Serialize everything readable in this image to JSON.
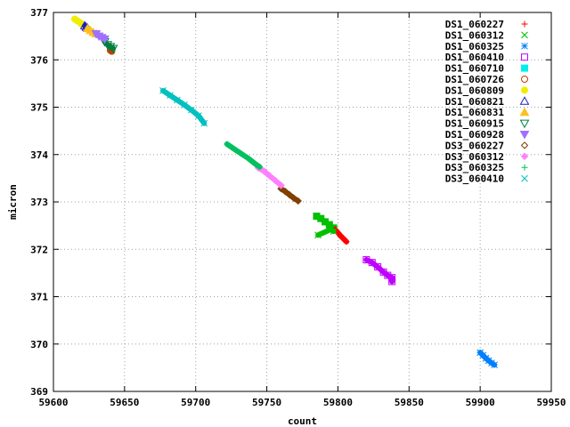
{
  "chart_data": {
    "type": "scatter",
    "title": "",
    "xlabel": "count",
    "ylabel": "micron",
    "xlim": [
      59600,
      59950
    ],
    "ylim": [
      369,
      377
    ],
    "xticks": [
      59600,
      59650,
      59700,
      59750,
      59800,
      59850,
      59900,
      59950
    ],
    "yticks": [
      369,
      370,
      371,
      372,
      373,
      374,
      375,
      376,
      377
    ],
    "grid": true,
    "legend_position": "top-right",
    "series": [
      {
        "name": "DS1_060227",
        "color": "#ff0000",
        "marker": "plus",
        "points": [
          [
            59798,
            372.42
          ],
          [
            59800,
            372.35
          ],
          [
            59802,
            372.28
          ],
          [
            59804,
            372.22
          ],
          [
            59806,
            372.16
          ]
        ]
      },
      {
        "name": "DS1_060312",
        "color": "#00c000",
        "marker": "cross",
        "points": [
          [
            59786,
            372.3
          ],
          [
            59795,
            372.42
          ],
          [
            59797,
            372.38
          ]
        ]
      },
      {
        "name": "DS1_060325",
        "color": "#0080ff",
        "marker": "star",
        "points": [
          [
            59900,
            369.82
          ],
          [
            59902,
            369.76
          ],
          [
            59904,
            369.7
          ],
          [
            59906,
            369.65
          ],
          [
            59908,
            369.6
          ],
          [
            59910,
            369.56
          ]
        ]
      },
      {
        "name": "DS1_060410",
        "color": "#c000ff",
        "marker": "square",
        "points": [
          [
            59820,
            371.78
          ],
          [
            59824,
            371.72
          ],
          [
            59828,
            371.63
          ],
          [
            59832,
            371.52
          ],
          [
            59835,
            371.45
          ],
          [
            59838,
            371.4
          ],
          [
            59838,
            371.32
          ]
        ]
      },
      {
        "name": "DS1_060710",
        "color": "#00eeee",
        "marker": "filled-square",
        "points": []
      },
      {
        "name": "DS1_060726",
        "color": "#c04000",
        "marker": "circle",
        "points": [
          [
            59640,
            376.2
          ],
          [
            59641,
            376.18
          ]
        ]
      },
      {
        "name": "DS1_060809",
        "color": "#eeee00",
        "marker": "filled-circle",
        "points": [
          [
            59615,
            376.86
          ],
          [
            59617,
            376.82
          ],
          [
            59619,
            376.78
          ],
          [
            59620,
            376.75
          ]
        ]
      },
      {
        "name": "DS1_060821",
        "color": "#2020c0",
        "marker": "triangle",
        "points": [
          [
            59622,
            376.72
          ],
          [
            59623,
            376.69
          ],
          [
            59624,
            376.67
          ]
        ]
      },
      {
        "name": "DS1_060831",
        "color": "#ffc020",
        "marker": "filled-triangle",
        "points": [
          [
            59624,
            376.66
          ],
          [
            59626,
            376.62
          ],
          [
            59628,
            376.58
          ],
          [
            59630,
            376.55
          ]
        ]
      },
      {
        "name": "DS1_060915",
        "color": "#008040",
        "marker": "inverted-triangle",
        "points": [
          [
            59636,
            376.38
          ],
          [
            59638,
            376.32
          ],
          [
            59640,
            376.28
          ],
          [
            59642,
            376.24
          ]
        ]
      },
      {
        "name": "DS1_060928",
        "color": "#a070ff",
        "marker": "filled-inverted-triangle",
        "points": [
          [
            59630,
            376.55
          ],
          [
            59632,
            376.5
          ],
          [
            59634,
            376.47
          ],
          [
            59636,
            376.44
          ]
        ]
      },
      {
        "name": "DS3_060227",
        "color": "#804000",
        "marker": "diamond",
        "points": [
          [
            59760,
            373.28
          ],
          [
            59763,
            373.22
          ],
          [
            59766,
            373.15
          ],
          [
            59769,
            373.08
          ],
          [
            59772,
            373.02
          ]
        ]
      },
      {
        "name": "DS3_060312",
        "color": "#ff80ff",
        "marker": "filled-diamond",
        "points": [
          [
            59744,
            373.72
          ],
          [
            59748,
            373.65
          ],
          [
            59752,
            373.55
          ],
          [
            59756,
            373.45
          ],
          [
            59760,
            373.35
          ]
        ]
      },
      {
        "name": "DS3_060325",
        "color": "#00c060",
        "marker": "plus",
        "points": [
          [
            59722,
            374.22
          ],
          [
            59727,
            374.12
          ],
          [
            59732,
            374.02
          ],
          [
            59737,
            373.92
          ],
          [
            59742,
            373.8
          ],
          [
            59745,
            373.74
          ]
        ]
      },
      {
        "name": "DS3_060410",
        "color": "#00c0c0",
        "marker": "cross",
        "points": [
          [
            59677,
            375.35
          ],
          [
            59682,
            375.25
          ],
          [
            59687,
            375.15
          ],
          [
            59692,
            375.05
          ],
          [
            59697,
            374.94
          ],
          [
            59702,
            374.82
          ],
          [
            59706,
            374.66
          ]
        ]
      }
    ],
    "extra_points": [
      {
        "color": "#00c000",
        "marker": "filled-square",
        "points": [
          [
            59785,
            372.7
          ],
          [
            59788,
            372.65
          ],
          [
            59791,
            372.58
          ],
          [
            59794,
            372.52
          ],
          [
            59797,
            372.45
          ]
        ]
      }
    ]
  }
}
